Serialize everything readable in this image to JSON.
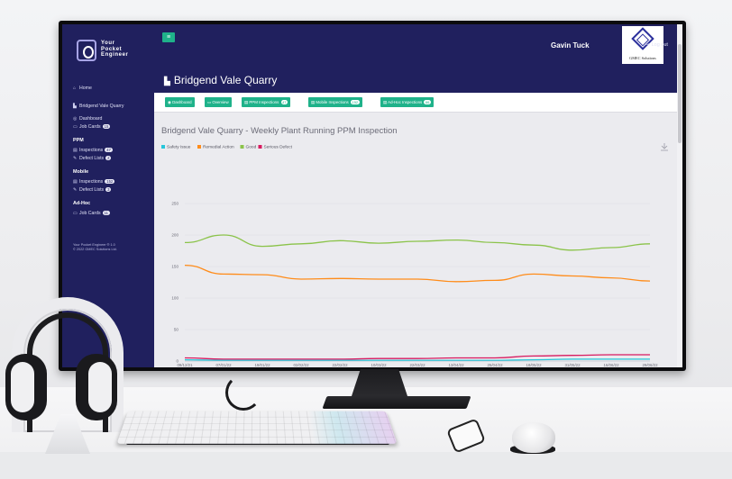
{
  "app": {
    "logo_lines": [
      "Your",
      "Pocket",
      "Engineer"
    ],
    "user_name": "Gavin Tuck",
    "company_logo_text": "GMEC Solutions",
    "logout_label": "Log out",
    "menu_icon": "hamburger-icon"
  },
  "sidebar": {
    "home": "Home",
    "site": "Bridgend Vale Quarry",
    "dashboard": "Dashboard",
    "job_cards": "Job Cards",
    "job_cards_count": "15",
    "sections": [
      {
        "title": "PPM",
        "items": [
          {
            "label": "Inspections",
            "count": "47"
          },
          {
            "label": "Defect Lists",
            "count": "2"
          }
        ]
      },
      {
        "title": "Mobile",
        "items": [
          {
            "label": "Inspections",
            "count": "152"
          },
          {
            "label": "Defect Lists",
            "count": "3"
          }
        ]
      },
      {
        "title": "Ad-Hoc",
        "items": [
          {
            "label": "Job Cards",
            "count": "11"
          }
        ]
      }
    ],
    "footer_line1": "Your Pocket Engineer ® 1.0",
    "footer_line2": "© 2022 GMEC Solutions Ltd."
  },
  "page": {
    "title": "Bridgend Vale Quarry"
  },
  "tabs": [
    {
      "label": "Dashboard",
      "badge": ""
    },
    {
      "label": "Overview",
      "badge": ""
    },
    {
      "label": "PPM Inspections",
      "badge": "47"
    },
    {
      "label": "Mobile Inspections",
      "badge": "152"
    },
    {
      "label": "Ad-Hoc Inspections",
      "badge": "66"
    }
  ],
  "chart_data": {
    "type": "line",
    "title": "Bridgend Vale Quarry - Weekly Plant Running PPM Inspection",
    "x": [
      "09/12/21",
      "07/01/22",
      "19/01/22",
      "02/02/22",
      "22/02/22",
      "10/03/22",
      "22/03/22",
      "13/04/22",
      "25/04/22",
      "18/05/22",
      "31/05/22",
      "16/06/22",
      "29/06/22"
    ],
    "ylim": [
      0,
      250
    ],
    "yticks": [
      0,
      50,
      100,
      150,
      200,
      250
    ],
    "grid": true,
    "legend_position": "top-left",
    "series": [
      {
        "name": "Safety Issue",
        "color": "#26c6da",
        "values": [
          2,
          1,
          1,
          1,
          1,
          1,
          1,
          1,
          1,
          2,
          3,
          3,
          3
        ]
      },
      {
        "name": "Remedial Action",
        "color": "#ff8c1a",
        "values": [
          152,
          138,
          137,
          130,
          131,
          130,
          130,
          126,
          128,
          138,
          135,
          132,
          127
        ]
      },
      {
        "name": "Good",
        "color": "#8bc34a",
        "values": [
          188,
          200,
          182,
          186,
          191,
          187,
          190,
          192,
          188,
          184,
          176,
          180,
          186
        ]
      },
      {
        "name": "Serious Defect",
        "color": "#d81b60",
        "values": [
          5,
          3,
          3,
          3,
          3,
          4,
          4,
          5,
          5,
          8,
          9,
          10,
          10
        ]
      }
    ]
  }
}
